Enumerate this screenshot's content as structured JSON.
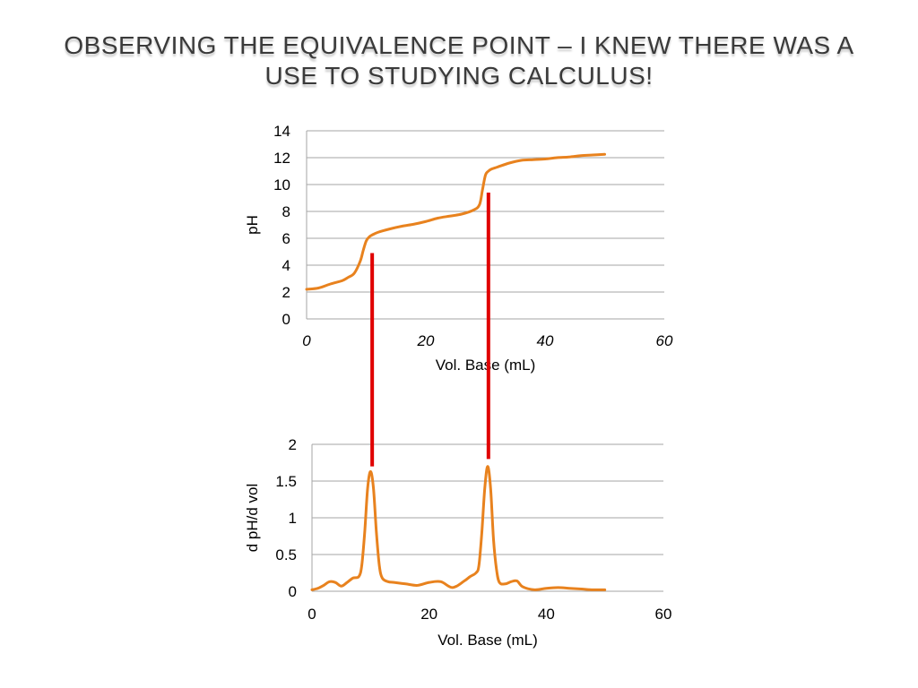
{
  "slide": {
    "title": "OBSERVING THE EQUIVALENCE POINT – I KNEW THERE WAS A USE TO STUDYING CALCULUS!"
  },
  "colors": {
    "curve": "#E8821E",
    "marker": "#E00000",
    "grid": "#A6A6A6"
  },
  "chart_data": [
    {
      "type": "line",
      "xlabel": "Vol. Base (mL)",
      "ylabel": "pH",
      "xlim": [
        0,
        60
      ],
      "ylim": [
        0,
        14
      ],
      "x_ticks": [
        "0",
        "20",
        "40",
        "60"
      ],
      "y_ticks": [
        "0",
        "2",
        "4",
        "6",
        "8",
        "10",
        "12",
        "14"
      ],
      "x_tick_style": "italic",
      "grid": "horizontal",
      "legend": "none",
      "series": [
        {
          "x": [
            0,
            2,
            4,
            6,
            7,
            8,
            9,
            9.5,
            10,
            10.5,
            11,
            12,
            14,
            16,
            18,
            20,
            22,
            24,
            26,
            28,
            29,
            29.5,
            30,
            30.5,
            31,
            32,
            34,
            36,
            38,
            40,
            42,
            44,
            46,
            48,
            50
          ],
          "y": [
            2.2,
            2.3,
            2.6,
            2.85,
            3.1,
            3.4,
            4.3,
            5.1,
            5.8,
            6.1,
            6.25,
            6.45,
            6.7,
            6.9,
            7.05,
            7.25,
            7.5,
            7.65,
            7.8,
            8.1,
            8.5,
            9.6,
            10.7,
            11.0,
            11.15,
            11.3,
            11.6,
            11.8,
            11.85,
            11.9,
            12.0,
            12.05,
            12.15,
            12.2,
            12.25
          ]
        }
      ],
      "markers": [
        {
          "x": 11,
          "y_from": 4.9,
          "y_to_lower_chart": 1.7
        },
        {
          "x": 30.5,
          "y_from": 9.4,
          "y_to_lower_chart": 1.8
        }
      ]
    },
    {
      "type": "line",
      "xlabel": "Vol. Base (mL)",
      "ylabel": "d pH/d vol",
      "xlim": [
        0,
        60
      ],
      "ylim": [
        0,
        2
      ],
      "x_ticks": [
        "0",
        "20",
        "40",
        "60"
      ],
      "y_ticks": [
        "0",
        "0.5",
        "1",
        "1.5",
        "2"
      ],
      "grid": "horizontal",
      "legend": "none",
      "series": [
        {
          "x": [
            0,
            1,
            2,
            3,
            4,
            5,
            6,
            7,
            8,
            8.5,
            9,
            9.5,
            10,
            10.5,
            11,
            11.5,
            12,
            13,
            14,
            16,
            18,
            20,
            22,
            24,
            26,
            27,
            28,
            28.5,
            29,
            29.5,
            30,
            30.5,
            31,
            31.5,
            32,
            33,
            34,
            35,
            36,
            38,
            40,
            42,
            44,
            46,
            48,
            50
          ],
          "y": [
            0.02,
            0.04,
            0.08,
            0.13,
            0.12,
            0.07,
            0.12,
            0.18,
            0.2,
            0.35,
            0.8,
            1.4,
            1.63,
            1.4,
            0.8,
            0.35,
            0.18,
            0.13,
            0.12,
            0.1,
            0.08,
            0.12,
            0.13,
            0.05,
            0.14,
            0.2,
            0.25,
            0.35,
            0.8,
            1.4,
            1.7,
            1.4,
            0.7,
            0.3,
            0.12,
            0.1,
            0.13,
            0.14,
            0.06,
            0.02,
            0.04,
            0.05,
            0.04,
            0.03,
            0.02,
            0.02
          ]
        }
      ]
    }
  ]
}
